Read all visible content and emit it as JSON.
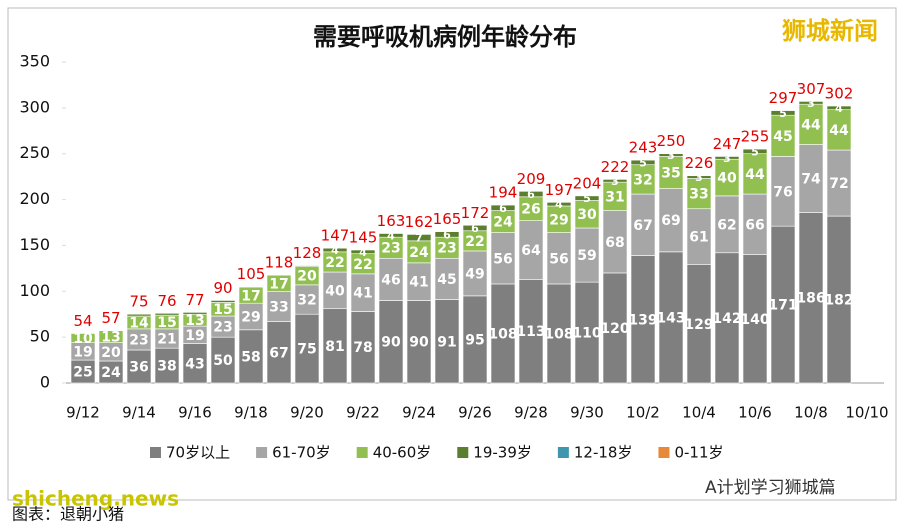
{
  "chart_data": {
    "type": "stacked_bar",
    "title": "需要呼吸机病例年龄分布",
    "categories": [
      "9/12",
      null,
      "9/14",
      null,
      "9/16",
      null,
      "9/18",
      null,
      "9/20",
      null,
      "9/22",
      null,
      "9/24",
      null,
      "9/26",
      null,
      "9/28",
      null,
      "9/30",
      null,
      "10/2",
      null,
      "10/4",
      null,
      "10/6",
      null,
      "10/8",
      null,
      "10/10"
    ],
    "series": [
      {
        "name": "70岁以上",
        "color": "#7f7f7f",
        "values": [
          25,
          24,
          36,
          38,
          43,
          50,
          58,
          67,
          75,
          81,
          78,
          90,
          90,
          91,
          95,
          108,
          113,
          108,
          110,
          120,
          139,
          143,
          129,
          142,
          140,
          171,
          186,
          182,
          null
        ]
      },
      {
        "name": "61-70岁",
        "color": "#a6a6a6",
        "values": [
          19,
          20,
          23,
          21,
          19,
          23,
          29,
          33,
          32,
          40,
          41,
          46,
          41,
          45,
          49,
          56,
          64,
          56,
          59,
          68,
          67,
          69,
          61,
          62,
          66,
          76,
          74,
          72,
          null
        ]
      },
      {
        "name": "40-60岁",
        "color": "#92c050",
        "values": [
          10,
          13,
          14,
          15,
          13,
          15,
          17,
          17,
          20,
          22,
          22,
          23,
          24,
          23,
          22,
          24,
          26,
          29,
          30,
          31,
          32,
          35,
          33,
          40,
          44,
          45,
          44,
          44,
          null
        ]
      },
      {
        "name": "19-39岁",
        "color": "#5b7f2e",
        "values": [
          0,
          0,
          2,
          2,
          2,
          2,
          1,
          1,
          1,
          4,
          4,
          4,
          7,
          6,
          6,
          6,
          6,
          4,
          5,
          3,
          5,
          3,
          3,
          3,
          5,
          5,
          3,
          4,
          null
        ]
      },
      {
        "name": "12-18岁",
        "color": "#3f97ad",
        "values": [
          0,
          0,
          0,
          0,
          0,
          0,
          0,
          0,
          0,
          0,
          0,
          0,
          0,
          0,
          0,
          0,
          0,
          0,
          0,
          0,
          0,
          0,
          0,
          0,
          0,
          0,
          0,
          0,
          null
        ]
      },
      {
        "name": "0-11岁",
        "color": "#e8893a",
        "values": [
          0,
          0,
          0,
          0,
          0,
          0,
          0,
          0,
          0,
          0,
          0,
          0,
          0,
          0,
          0,
          0,
          0,
          0,
          0,
          0,
          0,
          0,
          0,
          0,
          0,
          0,
          0,
          0,
          null
        ]
      }
    ],
    "totals": [
      54,
      57,
      75,
      76,
      77,
      90,
      105,
      118,
      128,
      147,
      145,
      163,
      162,
      165,
      172,
      194,
      209,
      197,
      204,
      222,
      243,
      250,
      226,
      247,
      255,
      297,
      307,
      302,
      null
    ],
    "ylim": [
      0,
      350
    ],
    "yticks": [
      0,
      50,
      100,
      150,
      200,
      250,
      300,
      350
    ],
    "watermark": "狮城新闻",
    "site": "shicheng.news",
    "account": "A计划学习狮城篇",
    "credit": "图表：退朝小猪"
  }
}
